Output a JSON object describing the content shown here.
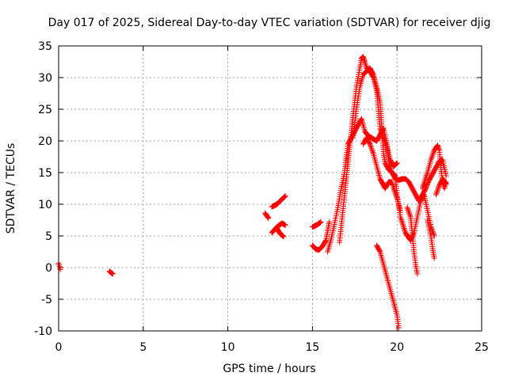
{
  "chart_data": {
    "type": "scatter",
    "title": "Day 017 of 2025, Sidereal Day-to-day VTEC variation (SDTVAR) for receiver djig",
    "xlabel": "GPS time / hours",
    "ylabel": "SDTVAR / TECUs",
    "xlim": [
      0,
      25
    ],
    "ylim": [
      -10,
      35
    ],
    "xticks": [
      0,
      5,
      10,
      15,
      20,
      25
    ],
    "yticks": [
      -10,
      -5,
      0,
      5,
      10,
      15,
      20,
      25,
      30,
      35
    ],
    "xtick_labels": [
      "0",
      "5",
      "10",
      "15",
      "20",
      "25"
    ],
    "ytick_labels": [
      "-10",
      "-5",
      "0",
      "5",
      "10",
      "15",
      "20",
      "25",
      "30",
      "35"
    ],
    "grid": true,
    "marker": "+",
    "color": "#ff0000",
    "series": [
      {
        "segments": [
          [
            [
              0.0,
              0.7
            ],
            [
              0.05,
              0.2
            ],
            [
              0.1,
              -0.3
            ]
          ],
          [
            [
              3.0,
              -0.6
            ],
            [
              3.1,
              -0.8
            ],
            [
              3.2,
              -1.0
            ]
          ],
          [
            [
              12.2,
              8.6
            ],
            [
              12.4,
              7.8
            ]
          ],
          [
            [
              12.6,
              9.6
            ],
            [
              12.9,
              10.0
            ],
            [
              13.2,
              10.8
            ],
            [
              13.4,
              11.3
            ]
          ],
          [
            [
              12.6,
              5.5
            ],
            [
              12.9,
              6.4
            ],
            [
              13.2,
              7.0
            ],
            [
              13.4,
              6.7
            ]
          ],
          [
            [
              12.9,
              6.2
            ],
            [
              13.1,
              5.3
            ],
            [
              13.3,
              4.9
            ]
          ],
          [
            [
              15.0,
              6.4
            ],
            [
              15.3,
              6.8
            ],
            [
              15.5,
              7.2
            ]
          ],
          [
            [
              15.0,
              3.5
            ],
            [
              15.2,
              2.9
            ],
            [
              15.4,
              2.8
            ],
            [
              15.6,
              3.4
            ],
            [
              15.8,
              4.3
            ],
            [
              15.9,
              5.8
            ],
            [
              16.0,
              7.2
            ]
          ],
          [
            [
              15.9,
              2.5
            ],
            [
              16.1,
              4.5
            ],
            [
              16.3,
              6.8
            ],
            [
              16.5,
              9.5
            ],
            [
              16.7,
              12.5
            ],
            [
              16.9,
              15.0
            ],
            [
              17.0,
              17.5
            ],
            [
              17.1,
              19.5
            ],
            [
              17.3,
              20.5
            ],
            [
              17.5,
              21.5
            ],
            [
              17.7,
              22.5
            ],
            [
              17.9,
              23.5
            ],
            [
              18.1,
              21.5
            ],
            [
              18.3,
              20.8
            ],
            [
              18.6,
              20.3
            ],
            [
              18.8,
              20.0
            ],
            [
              19.0,
              21.0
            ],
            [
              19.2,
              22.0
            ],
            [
              19.4,
              19.5
            ],
            [
              19.5,
              17.0
            ],
            [
              19.7,
              15.0
            ],
            [
              19.9,
              14.0
            ],
            [
              20.1,
              13.8
            ],
            [
              20.3,
              14.0
            ],
            [
              20.5,
              14.0
            ],
            [
              20.7,
              13.5
            ],
            [
              20.9,
              12.5
            ],
            [
              21.1,
              11.5
            ],
            [
              21.3,
              10.5
            ],
            [
              21.5,
              11.5
            ],
            [
              21.7,
              12.5
            ],
            [
              21.9,
              13.8
            ],
            [
              22.1,
              14.8
            ],
            [
              22.3,
              15.8
            ],
            [
              22.5,
              16.8
            ],
            [
              22.7,
              17.0
            ],
            [
              22.9,
              14.5
            ]
          ],
          [
            [
              16.6,
              4.0
            ],
            [
              16.8,
              9.0
            ],
            [
              17.0,
              14.0
            ],
            [
              17.2,
              19.0
            ],
            [
              17.4,
              24.0
            ],
            [
              17.6,
              28.5
            ],
            [
              17.8,
              31.5
            ],
            [
              17.9,
              33.0
            ],
            [
              18.0,
              33.3
            ],
            [
              18.1,
              32.5
            ],
            [
              18.2,
              31.5
            ],
            [
              18.4,
              31.0
            ],
            [
              18.6,
              30.0
            ],
            [
              18.8,
              28.0
            ],
            [
              18.9,
              25.0
            ],
            [
              19.0,
              22.0
            ],
            [
              19.2,
              20.5
            ],
            [
              19.4,
              19.0
            ],
            [
              19.6,
              17.0
            ],
            [
              19.8,
              16.0
            ],
            [
              20.0,
              16.5
            ]
          ],
          [
            [
              17.4,
              20.5
            ],
            [
              17.6,
              25.0
            ],
            [
              17.8,
              28.5
            ],
            [
              18.0,
              30.5
            ],
            [
              18.2,
              31.0
            ],
            [
              18.4,
              31.5
            ],
            [
              18.6,
              30.5
            ],
            [
              18.8,
              28.5
            ],
            [
              19.0,
              26.0
            ],
            [
              19.1,
              22.0
            ],
            [
              19.2,
              18.0
            ],
            [
              19.3,
              16.5
            ],
            [
              19.5,
              15.5
            ],
            [
              19.7,
              15.0
            ],
            [
              19.9,
              14.5
            ],
            [
              20.0,
              11.5
            ],
            [
              20.2,
              8.0
            ],
            [
              20.5,
              5.5
            ],
            [
              20.8,
              4.3
            ],
            [
              21.0,
              5.5
            ],
            [
              21.2,
              8.0
            ],
            [
              21.4,
              10.5
            ],
            [
              21.6,
              11.5
            ],
            [
              21.8,
              9.0
            ],
            [
              22.0,
              6.5
            ],
            [
              22.2,
              5.0
            ]
          ],
          [
            [
              18.0,
              19.5
            ],
            [
              18.2,
              20.5
            ],
            [
              18.4,
              19.5
            ],
            [
              18.6,
              18.0
            ],
            [
              18.8,
              16.0
            ],
            [
              19.0,
              14.0
            ],
            [
              19.3,
              12.5
            ],
            [
              19.5,
              13.5
            ],
            [
              19.7,
              13.5
            ],
            [
              19.8,
              12.5
            ],
            [
              20.0,
              11.0
            ],
            [
              20.2,
              9.0
            ]
          ],
          [
            [
              18.8,
              3.5
            ],
            [
              19.0,
              2.5
            ],
            [
              19.2,
              0.5
            ],
            [
              19.4,
              -1.5
            ],
            [
              19.6,
              -3.5
            ],
            [
              19.8,
              -5.5
            ],
            [
              20.0,
              -7.5
            ],
            [
              20.1,
              -9.5
            ]
          ],
          [
            [
              20.6,
              9.5
            ],
            [
              20.8,
              8.0
            ],
            [
              20.9,
              5.5
            ],
            [
              21.0,
              2.5
            ],
            [
              21.1,
              0.5
            ],
            [
              21.2,
              -1.0
            ]
          ],
          [
            [
              21.5,
              12.5
            ],
            [
              21.8,
              15.0
            ],
            [
              22.0,
              17.0
            ],
            [
              22.2,
              18.5
            ],
            [
              22.4,
              19.3
            ],
            [
              22.5,
              18.5
            ],
            [
              22.6,
              15.5
            ],
            [
              22.7,
              13.5
            ],
            [
              22.8,
              12.5
            ],
            [
              22.9,
              13.5
            ]
          ],
          [
            [
              21.8,
              7.5
            ],
            [
              22.0,
              5.0
            ],
            [
              22.1,
              3.0
            ],
            [
              22.2,
              1.5
            ]
          ],
          [
            [
              22.3,
              11.5
            ],
            [
              22.5,
              13.0
            ],
            [
              22.7,
              14.0
            ],
            [
              22.9,
              13.2
            ]
          ]
        ]
      }
    ]
  }
}
